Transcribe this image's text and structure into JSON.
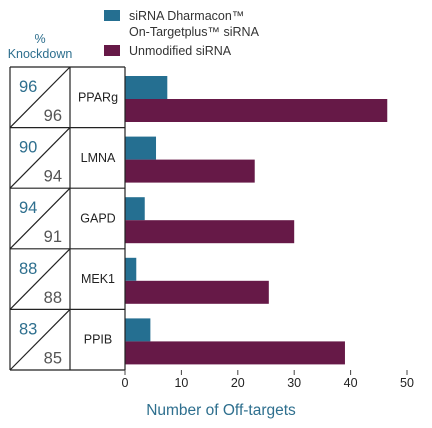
{
  "chart_data": {
    "type": "bar",
    "orientation": "horizontal",
    "categories": [
      "PPARg",
      "LMNA",
      "GAPD",
      "MEK1",
      "PPIB"
    ],
    "series": [
      {
        "name": "siRNA Dharmacon™ On-Targetplus™ siRNA",
        "legend_lines": [
          "siRNA Dharmacon™",
          "On-Targetplus™ siRNA"
        ],
        "values": [
          7.5,
          5.5,
          3.5,
          2,
          4.5
        ],
        "color": "#256f91"
      },
      {
        "name": "Unmodified siRNA",
        "legend_lines": [
          "Unmodified siRNA"
        ],
        "values": [
          46.5,
          23,
          30,
          25.5,
          39
        ],
        "color": "#661947"
      }
    ],
    "knockdown_header": [
      "%",
      "Knockdown"
    ],
    "knockdown": [
      {
        "gene": "PPARg",
        "on_target": "96",
        "unmodified": "96"
      },
      {
        "gene": "LMNA",
        "on_target": "90",
        "unmodified": "94"
      },
      {
        "gene": "GAPD",
        "on_target": "94",
        "unmodified": "91"
      },
      {
        "gene": "MEK1",
        "on_target": "88",
        "unmodified": "88"
      },
      {
        "gene": "PPIB",
        "on_target": "83",
        "unmodified": "85"
      }
    ],
    "xlabel": "Number of Off-targets",
    "xlim": [
      0,
      50
    ],
    "xticks": [
      "0",
      "10",
      "20",
      "30",
      "40",
      "50"
    ],
    "grid": false,
    "legend_position": "top"
  }
}
